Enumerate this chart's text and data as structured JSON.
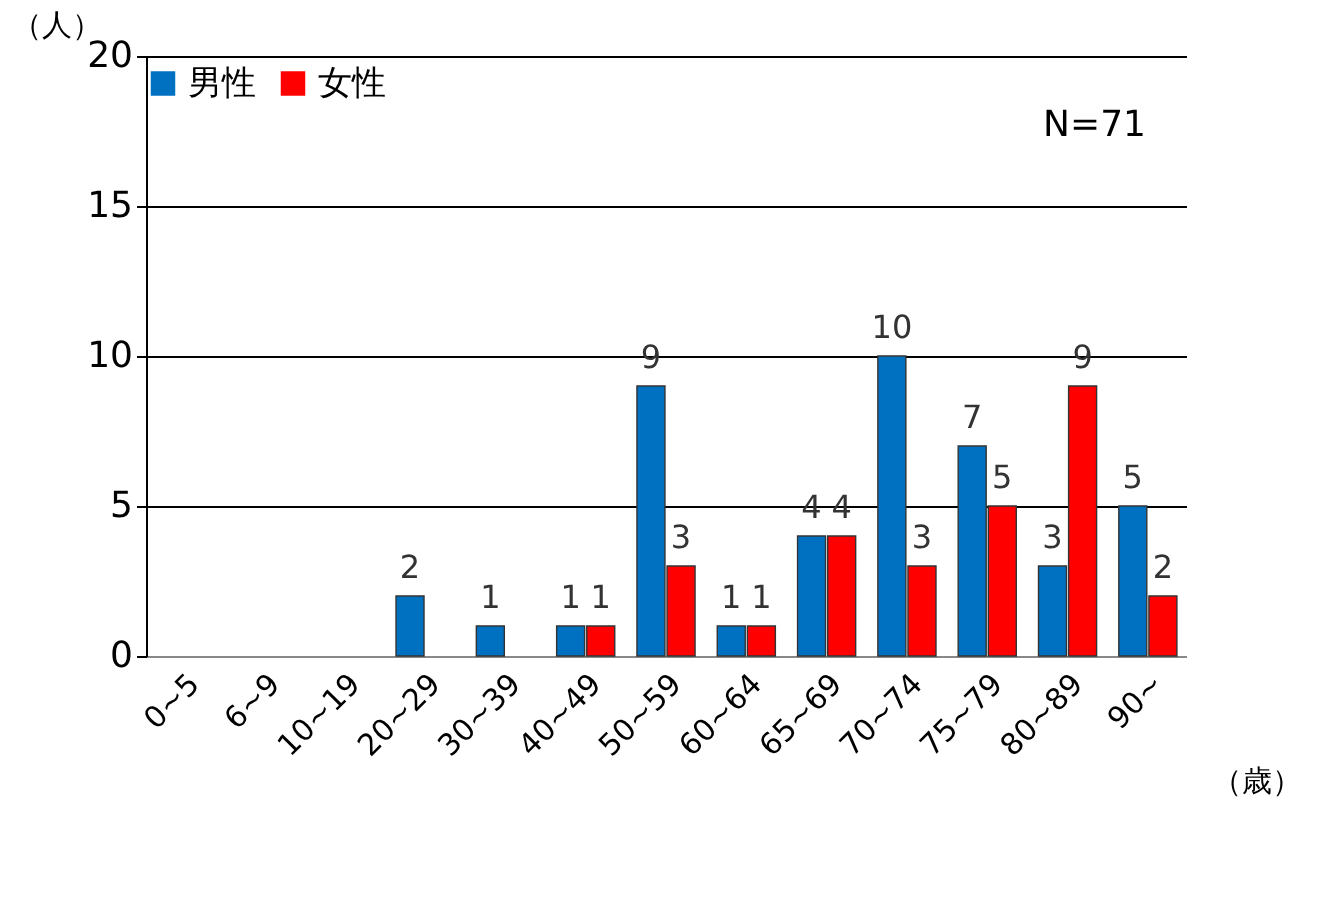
{
  "chart_data": {
    "type": "bar",
    "ylabel": "（人）",
    "xlabel": "（歳）",
    "categories": [
      "0~5",
      "6~9",
      "10~19",
      "20~29",
      "30~39",
      "40~49",
      "50~59",
      "60~64",
      "65~69",
      "70~74",
      "75~79",
      "80~89",
      "90~"
    ],
    "series": [
      {
        "name": "男性",
        "color": "#0070c0",
        "values": [
          0,
          0,
          0,
          2,
          1,
          1,
          9,
          1,
          4,
          10,
          7,
          3,
          5
        ],
        "value_labels": [
          null,
          null,
          null,
          "2",
          "1",
          "1",
          "9",
          "1",
          "4",
          "10",
          "7",
          "3",
          "5"
        ]
      },
      {
        "name": "女性",
        "color": "#ff0000",
        "values": [
          0,
          0,
          0,
          0,
          0,
          1,
          3,
          1,
          4,
          3,
          5,
          9,
          2
        ],
        "value_labels": [
          null,
          null,
          null,
          null,
          null,
          "1",
          "3",
          "1",
          "4",
          "3",
          "5",
          "9",
          "2"
        ]
      }
    ],
    "ylim": [
      0,
      20
    ],
    "yticks": [
      0,
      5,
      10,
      15,
      20
    ],
    "grid": "y",
    "legend": "top left",
    "annotations": [
      "N=71"
    ]
  }
}
